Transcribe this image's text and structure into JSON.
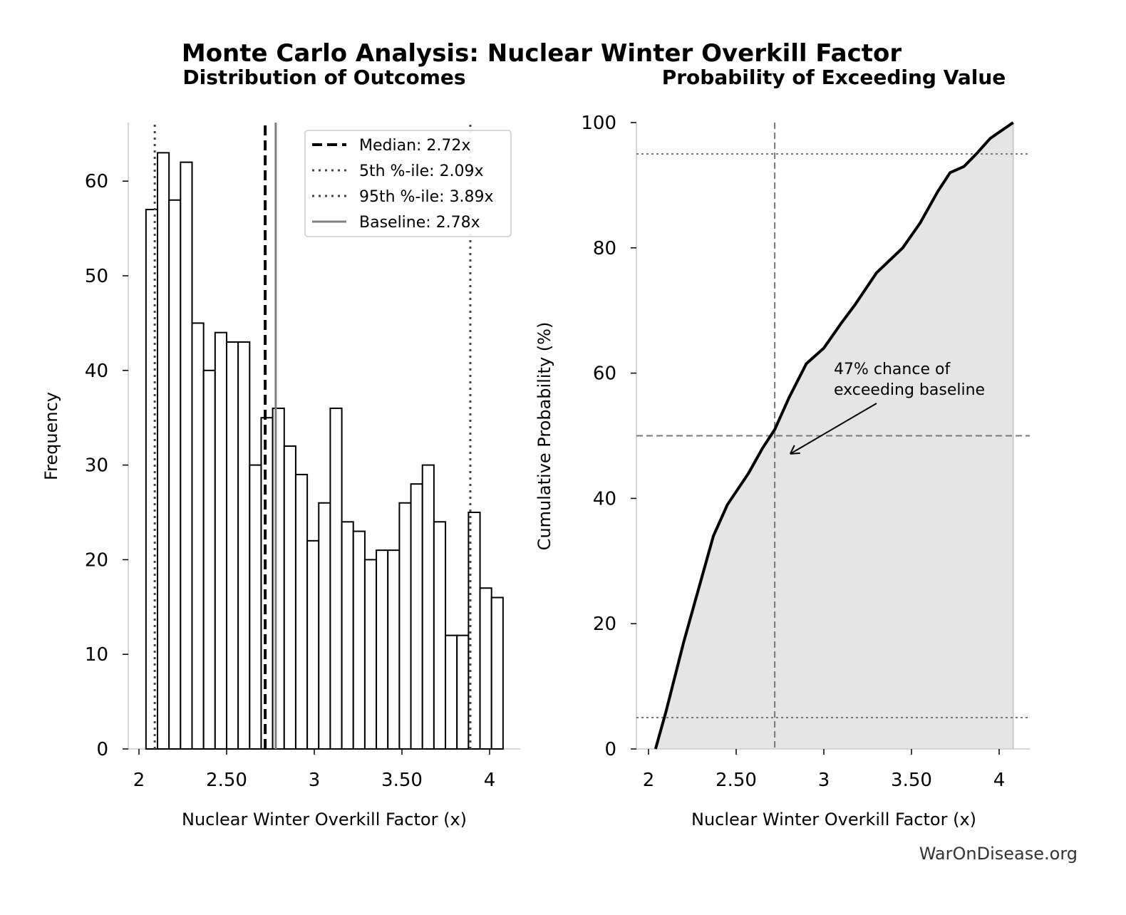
{
  "title": "Monte Carlo Analysis: Nuclear Winter Overkill Factor",
  "watermark": "WarOnDisease.org",
  "chart_data": [
    {
      "type": "bar",
      "title": "Distribution of Outcomes",
      "xlabel": "Nuclear Winter Overkill Factor (x)",
      "ylabel": "Frequency",
      "xlim": [
        1.96,
        4.17
      ],
      "ylim": [
        0,
        66
      ],
      "xticks": [
        2,
        2.5,
        3,
        3.5,
        4
      ],
      "xtick_labels": [
        "2",
        "2.50",
        "3",
        "3.50",
        "4"
      ],
      "yticks": [
        0,
        10,
        20,
        30,
        40,
        50,
        60
      ],
      "bin_start": 2.04,
      "bin_width": 0.0657,
      "values": [
        57,
        63,
        58,
        62,
        45,
        40,
        44,
        43,
        43,
        30,
        35,
        36,
        32,
        29,
        22,
        26,
        36,
        24,
        23,
        20,
        21,
        21,
        26,
        28,
        30,
        24,
        12,
        12,
        25,
        17,
        16
      ],
      "lines": [
        {
          "label": "Median: 2.72x",
          "x": 2.72,
          "style": "dashed",
          "color": "#000000"
        },
        {
          "label": "5th %-ile: 2.09x",
          "x": 2.09,
          "style": "dotted",
          "color": "#444444"
        },
        {
          "label": "95th %-ile: 3.89x",
          "x": 3.89,
          "style": "dotted",
          "color": "#444444"
        },
        {
          "label": "Baseline: 2.78x",
          "x": 2.78,
          "style": "solid",
          "color": "#808080"
        }
      ],
      "legend": "top-right"
    },
    {
      "type": "area",
      "title": "Probability of Exceeding Value",
      "xlabel": "Nuclear Winter Overkill Factor (x)",
      "ylabel": "Cumulative Probability (%)",
      "xlim": [
        1.93,
        4.17
      ],
      "ylim": [
        0,
        100
      ],
      "xticks": [
        2,
        2.5,
        3,
        3.5,
        4
      ],
      "xtick_labels": [
        "2",
        "2.50",
        "3",
        "3.50",
        "4"
      ],
      "yticks": [
        0,
        20,
        40,
        60,
        80,
        100
      ],
      "x": [
        2.04,
        2.1,
        2.2,
        2.3,
        2.37,
        2.45,
        2.57,
        2.65,
        2.72,
        2.8,
        2.9,
        3.0,
        3.1,
        3.18,
        3.3,
        3.45,
        3.55,
        3.65,
        3.72,
        3.8,
        3.87,
        3.95,
        4.08
      ],
      "y": [
        0,
        6,
        17,
        27,
        34,
        39,
        44,
        48,
        51,
        56,
        61.5,
        64,
        68,
        71,
        76,
        80,
        84,
        89,
        92,
        93,
        95,
        97.5,
        100
      ],
      "vline": 2.72,
      "hline": 50,
      "hdotted": [
        5,
        95
      ],
      "annotation": {
        "text_line1": "47% chance of",
        "text_line2": "exceeding baseline",
        "x": 2.8,
        "y": 47
      }
    }
  ]
}
